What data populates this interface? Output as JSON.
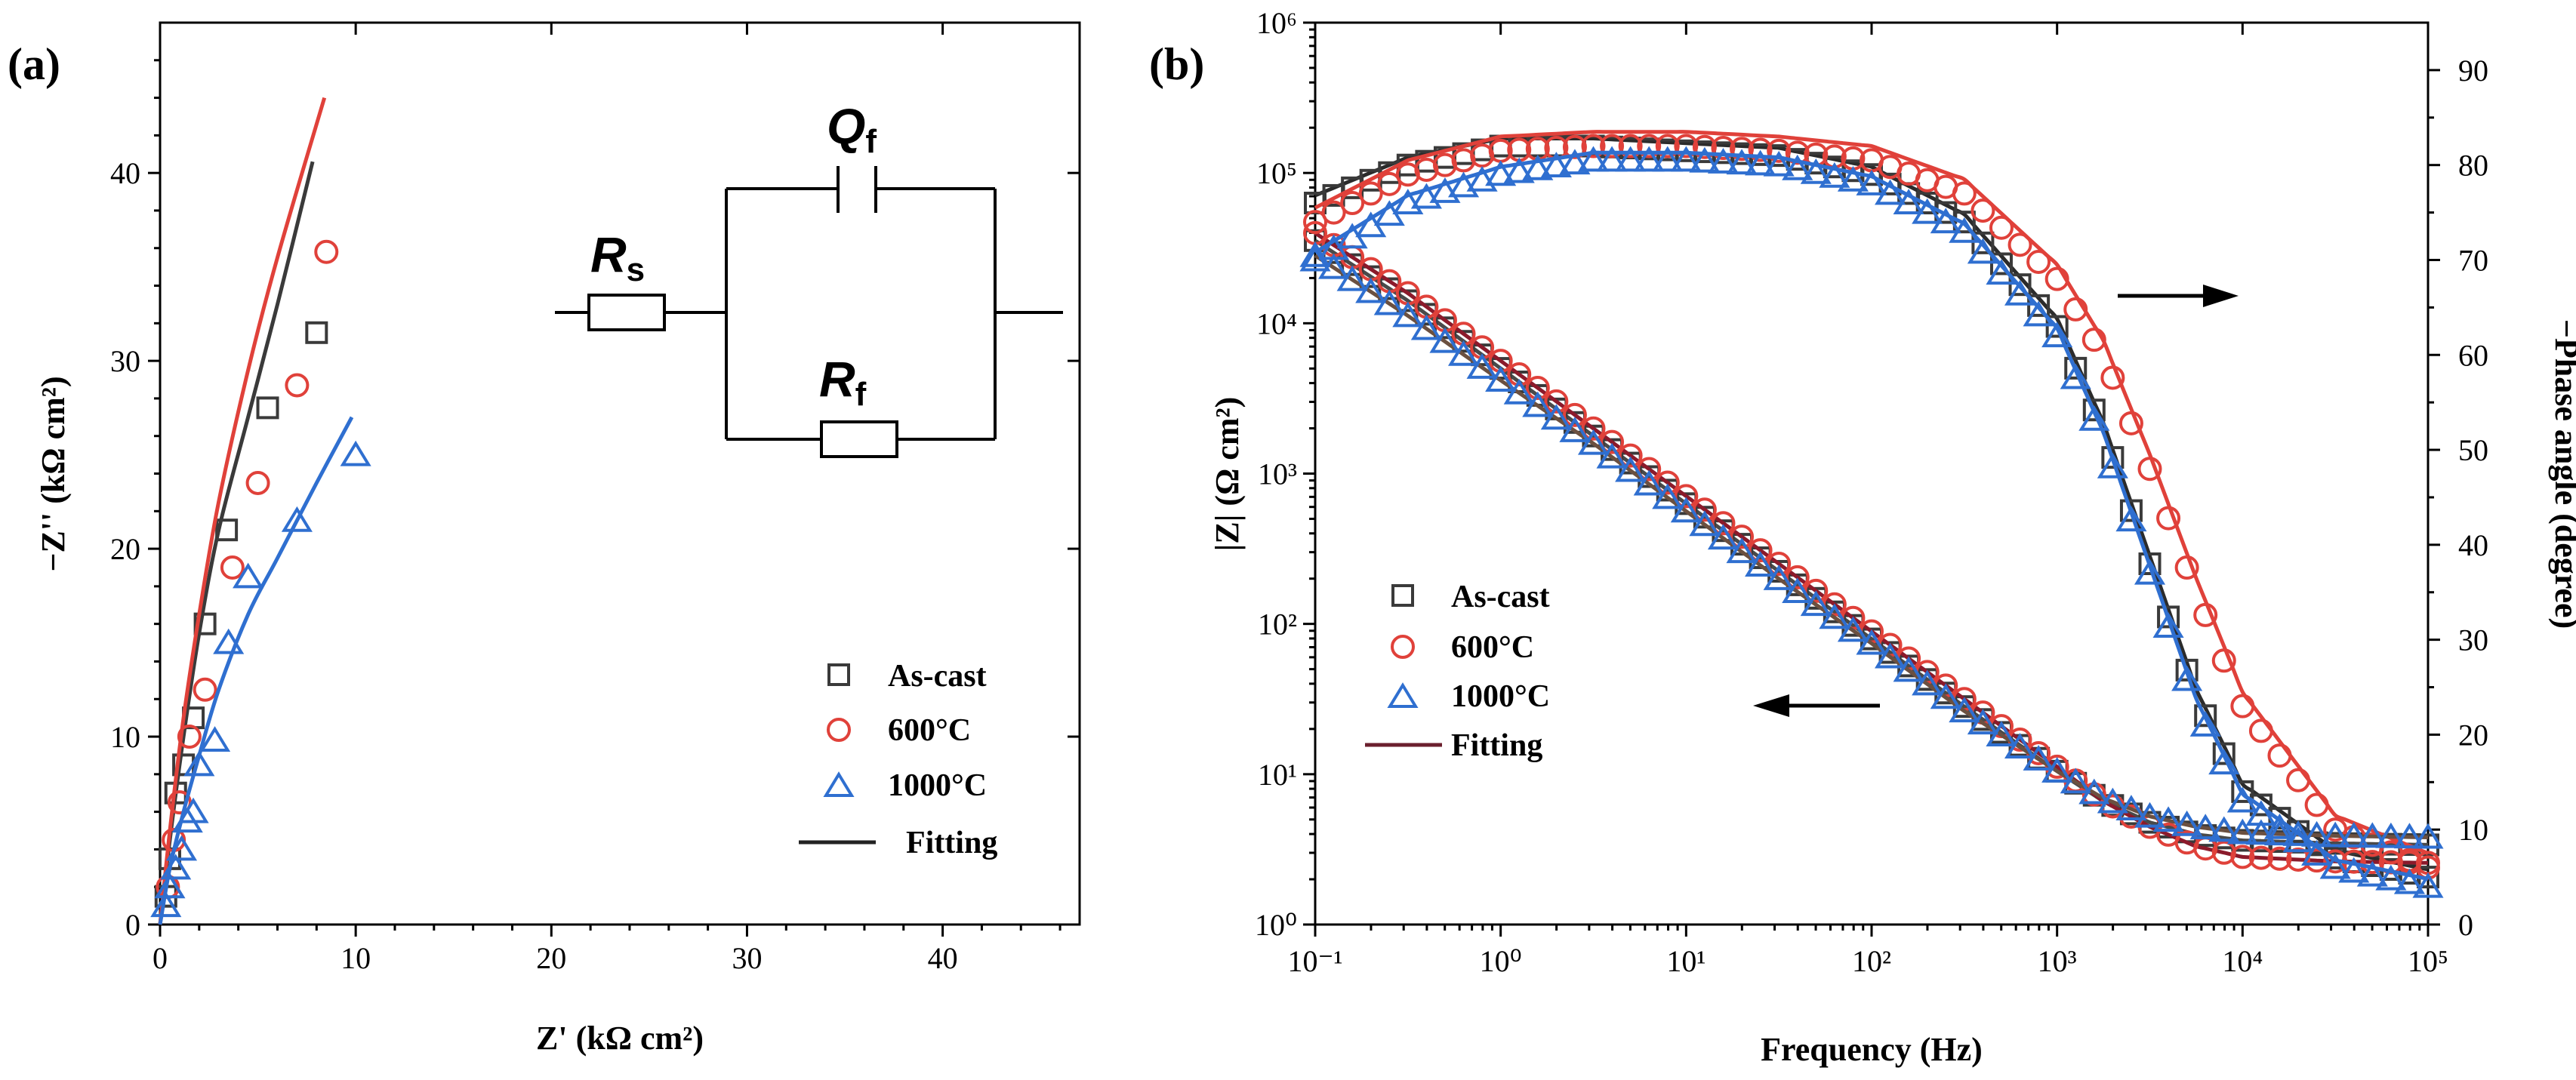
{
  "chart_data": [
    {
      "panel": "(a)",
      "type": "scatter",
      "title": "",
      "xlabel": "Z' (kΩ cm²)",
      "ylabel": "−Z'' (kΩ cm²)",
      "xlim": [
        0,
        47
      ],
      "ylim": [
        0,
        48
      ],
      "xticks": [
        "0",
        "10",
        "20",
        "30",
        "40"
      ],
      "yticks": [
        "0",
        "10",
        "20",
        "30",
        "40"
      ],
      "legend_position": "lower-right",
      "legend_fit_label": "Fitting",
      "series": [
        {
          "name": "As-cast",
          "color": "#3a3a3a",
          "marker": "square",
          "points": [
            [
              0.3,
              1.5
            ],
            [
              0.5,
              3.5
            ],
            [
              0.8,
              7
            ],
            [
              1.2,
              8.5
            ],
            [
              1.7,
              11
            ],
            [
              2.3,
              16
            ],
            [
              3.4,
              21
            ],
            [
              5.5,
              27.5
            ],
            [
              8,
              31.5
            ]
          ],
          "fit": [
            [
              0,
              0
            ],
            [
              0.5,
              4.5
            ],
            [
              1.2,
              10
            ],
            [
              2,
              15.5
            ],
            [
              3,
              21
            ],
            [
              4.5,
              27
            ],
            [
              6,
              33
            ],
            [
              7.8,
              40.6
            ]
          ]
        },
        {
          "name": "600°C",
          "color": "#e0413a",
          "marker": "circle",
          "points": [
            [
              0.4,
              2
            ],
            [
              0.7,
              4.5
            ],
            [
              1,
              6.5
            ],
            [
              1.5,
              10
            ],
            [
              2.3,
              12.5
            ],
            [
              3.7,
              19
            ],
            [
              5,
              23.5
            ],
            [
              7,
              28.7
            ],
            [
              8.5,
              35.8
            ]
          ],
          "fit": [
            [
              0,
              0
            ],
            [
              0.5,
              5
            ],
            [
              1.2,
              11
            ],
            [
              2,
              16.5
            ],
            [
              3,
              22.5
            ],
            [
              4.5,
              29.5
            ],
            [
              6,
              35.5
            ],
            [
              8.4,
              44
            ]
          ]
        },
        {
          "name": "1000°C",
          "color": "#2f6fd0",
          "marker": "triangle",
          "points": [
            [
              0.3,
              1
            ],
            [
              0.5,
              2
            ],
            [
              0.8,
              3
            ],
            [
              1.1,
              4
            ],
            [
              1.4,
              5.5
            ],
            [
              1.7,
              6
            ],
            [
              2,
              8.5
            ],
            [
              2.8,
              9.8
            ],
            [
              3.5,
              15
            ],
            [
              4.5,
              18.5
            ],
            [
              7,
              21.5
            ],
            [
              10,
              25
            ]
          ],
          "fit": [
            [
              0,
              0
            ],
            [
              0.5,
              3
            ],
            [
              1.2,
              6
            ],
            [
              2,
              9
            ],
            [
              3,
              12.5
            ],
            [
              4.5,
              16.5
            ],
            [
              6,
              19.5
            ],
            [
              8,
              23.5
            ],
            [
              9.8,
              27
            ]
          ]
        }
      ]
    },
    {
      "panel": "(b)",
      "type": "line",
      "title": "",
      "xlabel": "Frequency (Hz)",
      "ylabel_left": "|Z| (Ω cm²)",
      "ylabel_right": "−Phase angle (degree)",
      "xscale": "log",
      "xlim": [
        0.1,
        100000
      ],
      "ylim_left": [
        1,
        1000000
      ],
      "ylim_right": [
        0,
        95
      ],
      "xticks_exp": [
        "-1",
        "0",
        "1",
        "2",
        "3",
        "4",
        "5"
      ],
      "yticks_left_exp": [
        "0",
        "1",
        "2",
        "3",
        "4",
        "5",
        "6"
      ],
      "yticks_right": [
        "0",
        "10",
        "20",
        "30",
        "40",
        "50",
        "60",
        "70",
        "80",
        "90"
      ],
      "legend_position": "center-left",
      "legend_fit_label": "Fitting",
      "frequency_log_points": [
        -1,
        -0.5,
        0,
        0.5,
        1,
        1.5,
        2,
        2.5,
        3,
        3.25,
        3.5,
        3.75,
        4,
        4.5,
        5
      ],
      "series": [
        {
          "name": "As-cast",
          "color": "#3a3a3a",
          "marker": "square",
          "log_modulus": [
            4.55,
            4.15,
            3.7,
            3.25,
            2.8,
            2.35,
            1.9,
            1.45,
            1.02,
            0.82,
            0.68,
            0.6,
            0.56,
            0.54,
            0.53
          ],
          "phase": [
            76,
            80,
            82,
            82,
            81.5,
            81,
            79,
            74,
            63,
            52,
            38,
            24,
            14,
            7,
            5
          ]
        },
        {
          "name": "600°C",
          "color": "#e0413a",
          "marker": "circle",
          "log_modulus": [
            4.6,
            4.2,
            3.75,
            3.3,
            2.85,
            2.4,
            1.95,
            1.5,
            1.05,
            0.82,
            0.65,
            0.52,
            0.45,
            0.42,
            0.41
          ],
          "phase": [
            74,
            79,
            81.5,
            82,
            82,
            81.5,
            80.5,
            77,
            68,
            60,
            48,
            35,
            23,
            10,
            6
          ]
        },
        {
          "name": "1000°C",
          "color": "#2f6fd0",
          "marker": "triangle",
          "log_modulus": [
            4.45,
            4.05,
            3.62,
            3.2,
            2.75,
            2.3,
            1.87,
            1.42,
            1.02,
            0.84,
            0.72,
            0.65,
            0.61,
            0.59,
            0.58
          ],
          "phase": [
            70,
            76,
            79,
            80.5,
            80.5,
            80,
            78,
            73,
            62,
            51,
            37,
            23,
            13,
            6,
            4
          ]
        }
      ],
      "annotations": [
        "arrow-right-phase",
        "arrow-left-modulus"
      ]
    }
  ],
  "circuit": {
    "Rs_main": "R",
    "Rs_sub": "s",
    "Qf_main": "Q",
    "Qf_sub": "f",
    "Rf_main": "R",
    "Rf_sub": "f"
  },
  "panel_labels": {
    "a": "(a)",
    "b": "(b)"
  },
  "tick_base": "10"
}
